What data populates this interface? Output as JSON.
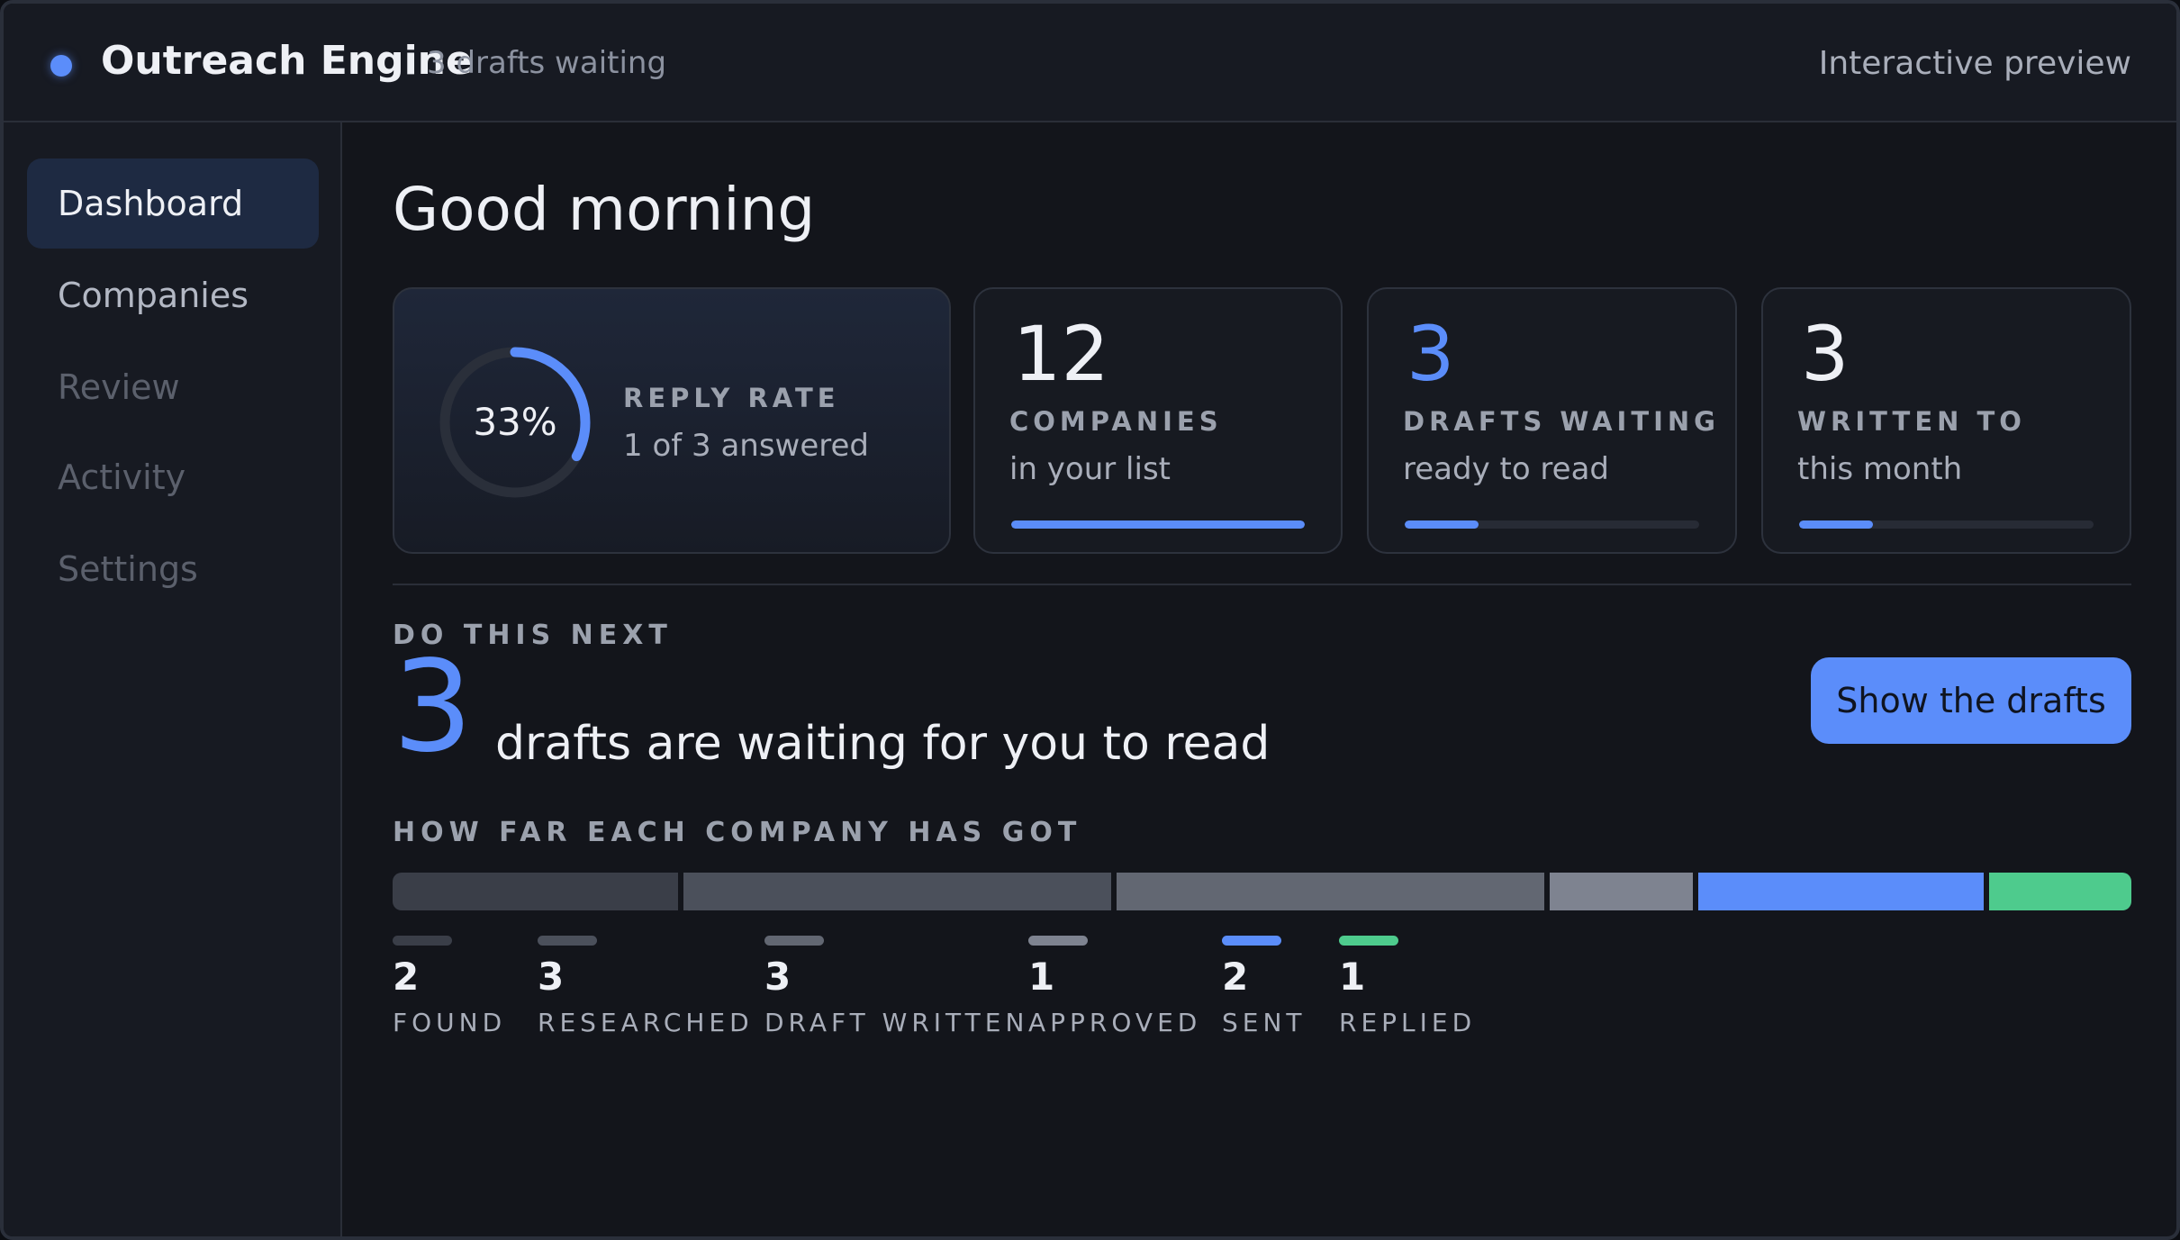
{
  "app": {
    "title": "Outreach Engine",
    "subtitle": "3 drafts waiting",
    "preview_label": "Interactive preview"
  },
  "sidebar": {
    "items": [
      {
        "label": "Dashboard",
        "state": "active"
      },
      {
        "label": "Companies",
        "state": "enabled"
      },
      {
        "label": "Review",
        "state": "muted"
      },
      {
        "label": "Activity",
        "state": "muted"
      },
      {
        "label": "Settings",
        "state": "muted"
      }
    ]
  },
  "main": {
    "greeting": "Good morning",
    "reply_card": {
      "percent_text": "33%",
      "percent": 0.33,
      "label": "REPLY RATE",
      "sub": "1 of 3 answered"
    },
    "stat_cards": [
      {
        "number": "12",
        "label": "COMPANIES",
        "sub": "in your list",
        "progress": 1.0,
        "accent": false
      },
      {
        "number": "3",
        "label": "DRAFTS WAITING",
        "sub": "ready to read",
        "progress": 0.25,
        "accent": true
      },
      {
        "number": "3",
        "label": "WRITTEN TO",
        "sub": "this month",
        "progress": 0.25,
        "accent": false
      }
    ],
    "next": {
      "section_label": "DO THIS NEXT",
      "count": "3",
      "text": "drafts are waiting for you to read",
      "button_label": "Show the drafts"
    },
    "pipeline": {
      "section_label": "HOW FAR EACH COMPANY HAS GOT",
      "stages": [
        {
          "name": "FOUND",
          "count": "2",
          "value": 2,
          "color": "#3a3e48"
        },
        {
          "name": "RESEARCHED",
          "count": "3",
          "value": 3,
          "color": "#4b505b"
        },
        {
          "name": "DRAFT WRITTEN",
          "count": "3",
          "value": 3,
          "color": "#626772"
        },
        {
          "name": "APPROVED",
          "count": "1",
          "value": 1,
          "color": "#7e8390"
        },
        {
          "name": "SENT",
          "count": "2",
          "value": 2,
          "color": "#5b8dfa"
        },
        {
          "name": "REPLIED",
          "count": "1",
          "value": 1,
          "color": "#4ecb8d"
        }
      ]
    }
  },
  "colors": {
    "accent": "#5b8dfa",
    "success": "#4ecb8d",
    "background": "#13151b"
  }
}
